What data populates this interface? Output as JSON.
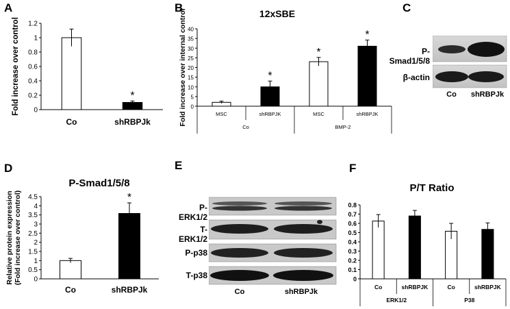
{
  "panels": {
    "A": {
      "letter": "A"
    },
    "B": {
      "letter": "B"
    },
    "C": {
      "letter": "C"
    },
    "D": {
      "letter": "D"
    },
    "E": {
      "letter": "E"
    },
    "F": {
      "letter": "F"
    }
  },
  "blot_C": {
    "rows": [
      "P-Smad1/5/8",
      "β-actin"
    ],
    "lanes": [
      "Co",
      "shRBPJk"
    ]
  },
  "blot_E": {
    "rows": [
      "P-ERK1/2",
      "T-ERK1/2",
      "P-p38",
      "T-p38"
    ],
    "lanes": [
      "Co",
      "shRBPJk"
    ]
  },
  "chart_data": [
    {
      "id": "A",
      "type": "bar",
      "title": "",
      "ylabel": "Fold increase over control",
      "categories": [
        "Co",
        "shRBPJk"
      ],
      "values": [
        1.0,
        0.1
      ],
      "errors": [
        0.12,
        0.02
      ],
      "fills": [
        "#ffffff",
        "#000000"
      ],
      "significance": [
        "",
        "*"
      ],
      "ylim": [
        0,
        1.2
      ],
      "yticks": [
        "0",
        "0.2",
        "0.4",
        "0.6",
        "0.8",
        "1",
        "1.2"
      ]
    },
    {
      "id": "B",
      "type": "bar",
      "title": "12xSBE",
      "ylabel": "Fold increase over internal control",
      "categories": [
        "MSC",
        "shRBPJK",
        "MSC",
        "shRBPJK"
      ],
      "groups": [
        "Co",
        "BMP-2"
      ],
      "values": [
        2,
        10,
        23,
        31
      ],
      "errors": [
        0.6,
        3,
        2.2,
        3.2
      ],
      "fills": [
        "#ffffff",
        "#000000",
        "#ffffff",
        "#000000"
      ],
      "significance": [
        "",
        "*",
        "*",
        "*"
      ],
      "ylim": [
        0,
        40
      ],
      "yticks": [
        "0",
        "5",
        "10",
        "15",
        "20",
        "25",
        "30",
        "35",
        "40"
      ]
    },
    {
      "id": "D",
      "type": "bar",
      "title": "P-Smad1/5/8",
      "ylabel_line1": "Relative  protein expression",
      "ylabel_line2": "(Fold increase over control)",
      "categories": [
        "Co",
        "shRBPJk"
      ],
      "values": [
        1.0,
        3.58
      ],
      "errors": [
        0.12,
        0.58
      ],
      "fills": [
        "#ffffff",
        "#000000"
      ],
      "significance": [
        "",
        "*"
      ],
      "ylim": [
        0,
        4.5
      ],
      "yticks": [
        "0",
        "0.5",
        "1",
        "1.5",
        "2",
        "2.5",
        "3",
        "3.5",
        "4",
        "4.5"
      ]
    },
    {
      "id": "F",
      "type": "bar",
      "title": "P/T Ratio",
      "categories": [
        "Co",
        "shRBPJK",
        "Co",
        "shRBPJK"
      ],
      "groups": [
        "ERK1/2",
        "P38"
      ],
      "values": [
        0.625,
        0.68,
        0.515,
        0.535
      ],
      "errors": [
        0.07,
        0.06,
        0.085,
        0.07
      ],
      "fills": [
        "#ffffff",
        "#000000",
        "#ffffff",
        "#000000"
      ],
      "significance": [
        "",
        "",
        "",
        ""
      ],
      "ylim": [
        0,
        0.8
      ],
      "yticks": [
        "0",
        "0.1",
        "0.2",
        "0.3",
        "0.4",
        "0.5",
        "0.6",
        "0.7",
        "0.8"
      ]
    }
  ]
}
